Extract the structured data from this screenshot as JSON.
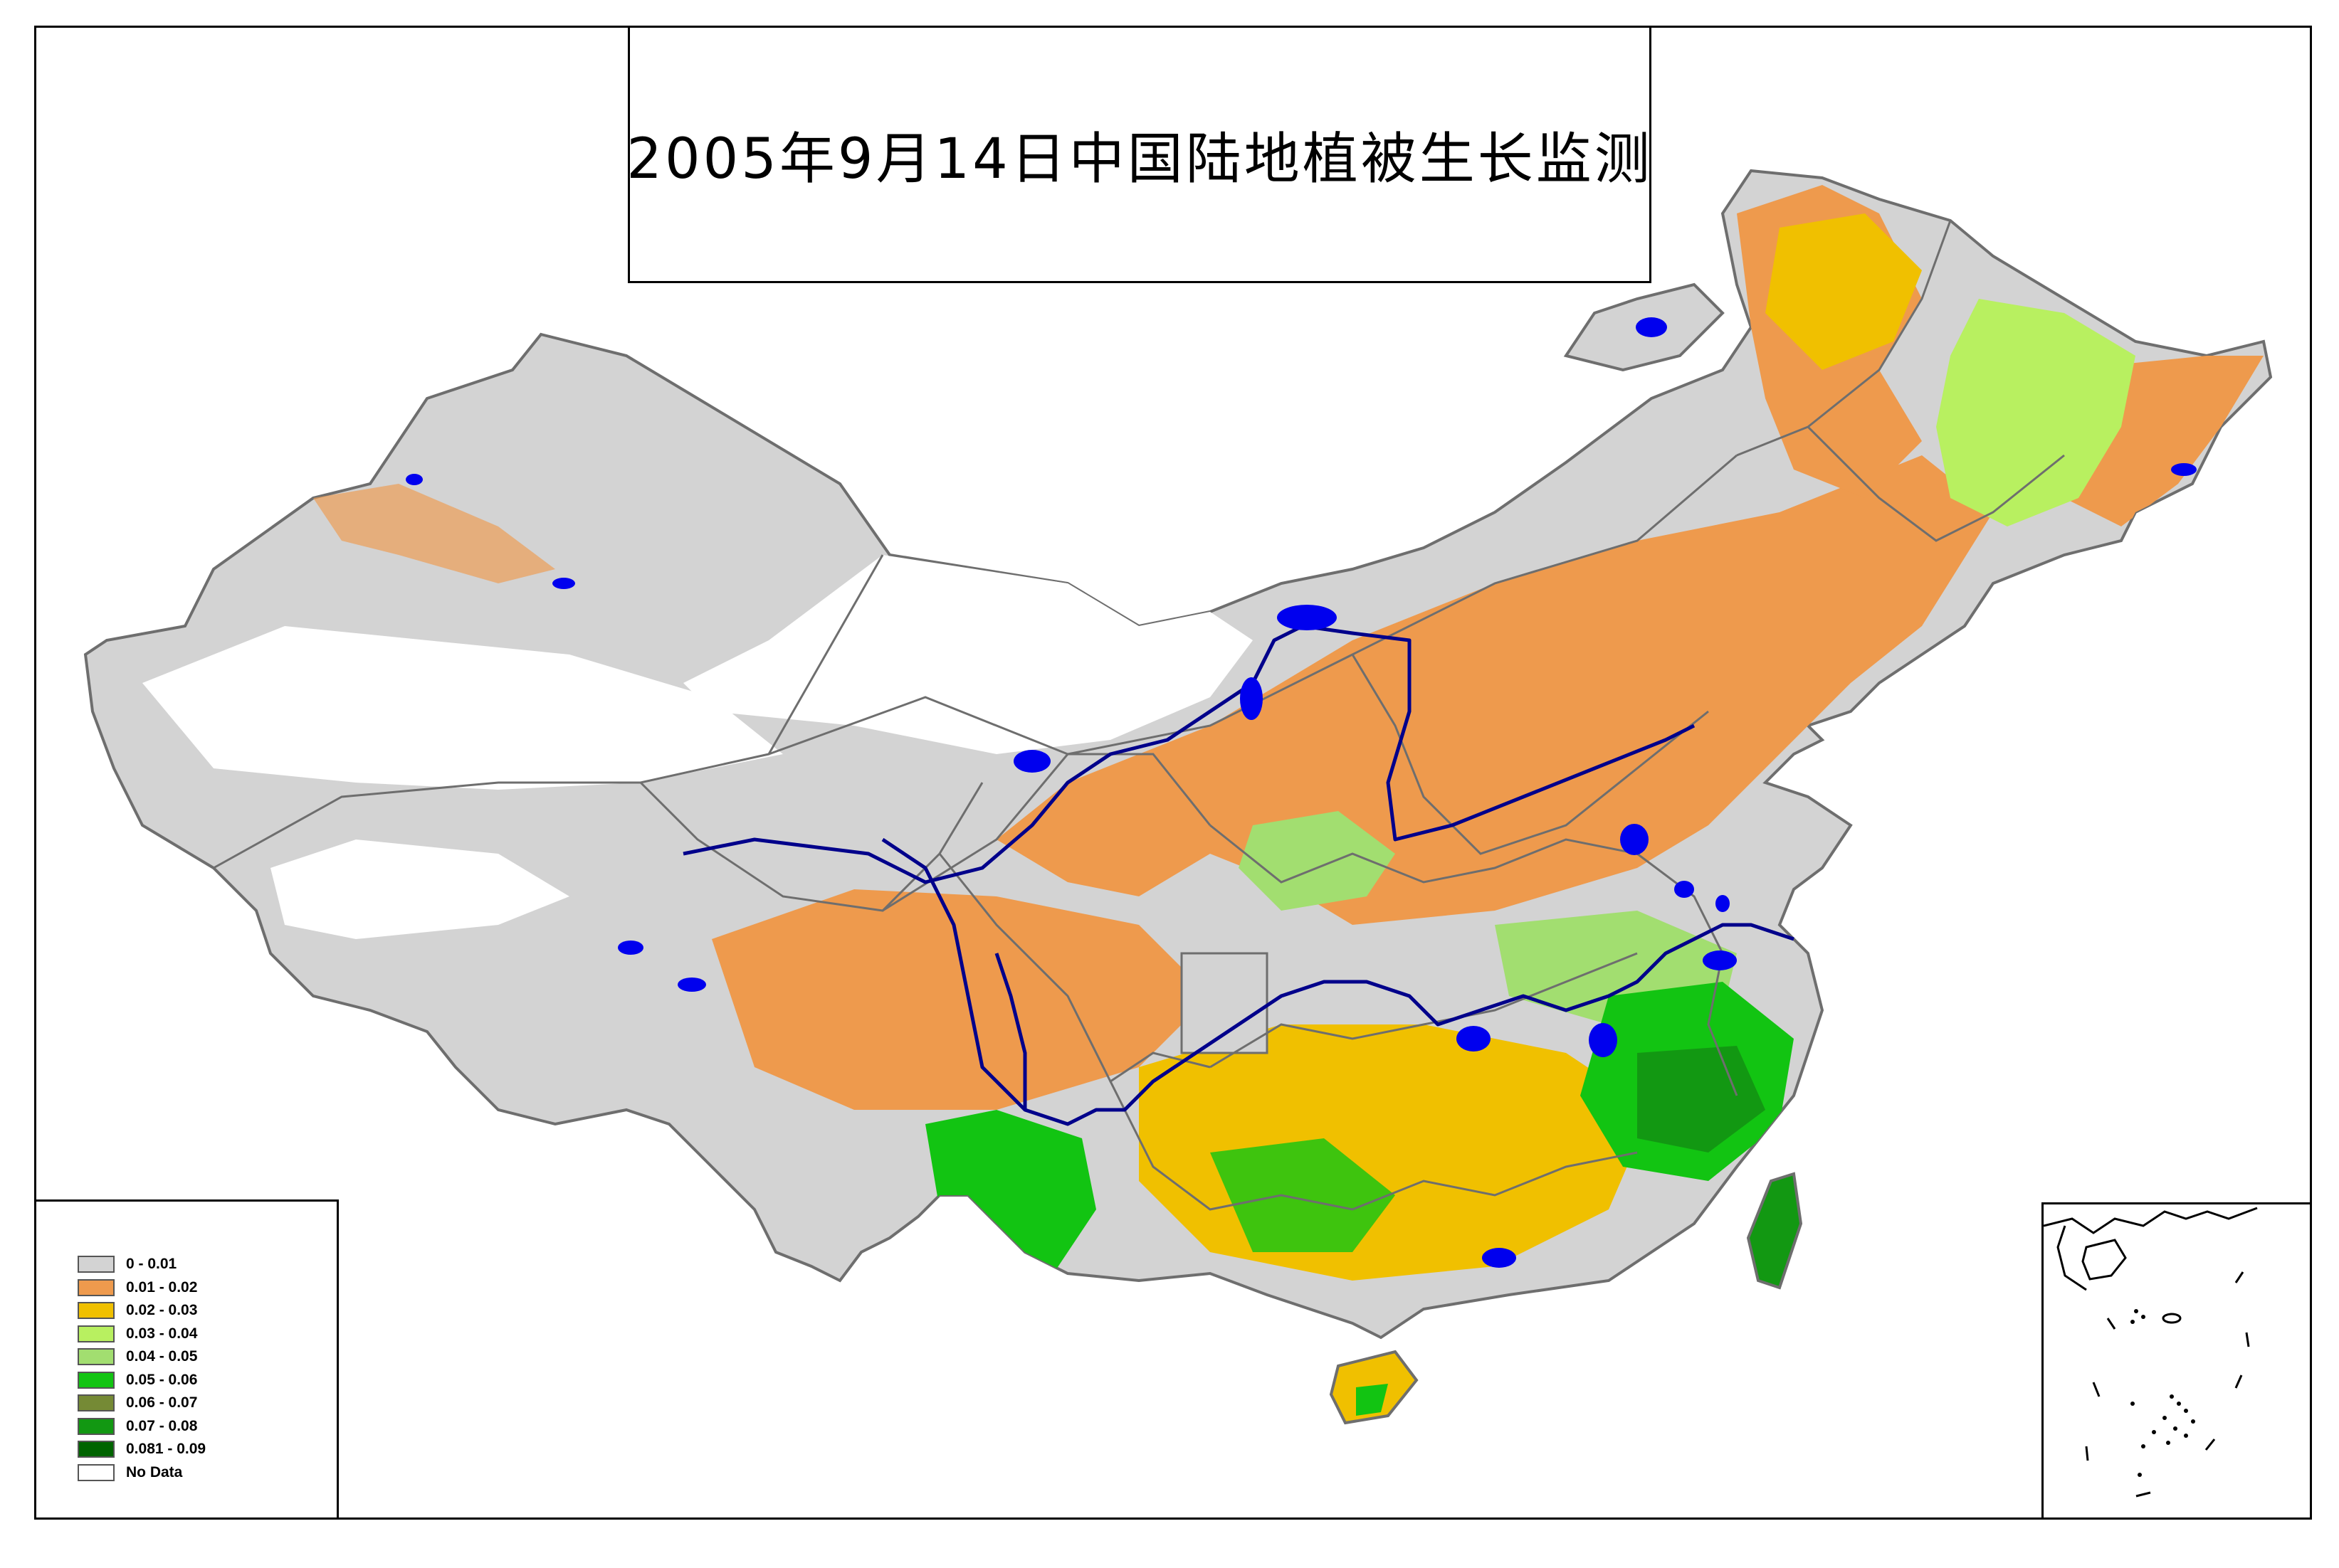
{
  "title": "2005年9月14日中国陆地植被生长监测",
  "colors": {
    "boundary": "#6e6e6e",
    "river": "#00008b",
    "lake": "#0000ee",
    "background": "#ffffff"
  },
  "legend": [
    {
      "label": "0 - 0.01",
      "color": "#d3d3d3"
    },
    {
      "label": "0.01 - 0.02",
      "color": "#ee9a4d"
    },
    {
      "label": "0.02 - 0.03",
      "color": "#f0c000"
    },
    {
      "label": "0.03 - 0.04",
      "color": "#b8f060"
    },
    {
      "label": "0.04 - 0.05",
      "color": "#a2de70"
    },
    {
      "label": "0.05 - 0.06",
      "color": "#12c412"
    },
    {
      "label": "0.06 - 0.07",
      "color": "#758a35"
    },
    {
      "label": "0.07 - 0.08",
      "color": "#129812"
    },
    {
      "label": "0.081 - 0.09",
      "color": "#006400"
    },
    {
      "label": "No Data",
      "color": "#ffffff"
    }
  ]
}
